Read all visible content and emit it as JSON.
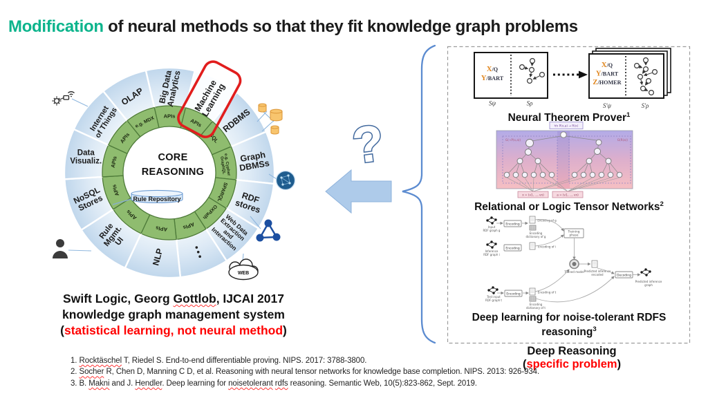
{
  "title": {
    "highlight": "Modification",
    "rest": " of neural methods so that they fit knowledge graph problems"
  },
  "colors": {
    "accent_teal": "#0cb48c",
    "alert_red": "#ff0000",
    "highlight_red": "#e11d1d",
    "wheel_blue": "#c0d7ec",
    "ring_green": "#8fbc6f",
    "arrow_blue": "#aecbea",
    "brace_blue": "#5b8bd0",
    "db_orange": "#f8c56e",
    "rdf_blue": "#1c4fa1"
  },
  "middle": {
    "question_mark": "?"
  },
  "wheel": {
    "center_line1": "CORE",
    "center_line2": "REASONING",
    "rule_repository_label": "Rule Repository",
    "web_label": "WEB",
    "segments": [
      {
        "label": "Big Data\nAnalytics",
        "inner": "APIs",
        "phi": 0,
        "rot": -78
      },
      {
        "label": "Machine\nLearning",
        "inner": "APIs",
        "phi": 28,
        "rot": -60,
        "highlighted": true
      },
      {
        "label": "RDBMS",
        "inner": "SQL",
        "phi": 52,
        "rot": -38
      },
      {
        "label": "Graph\nDBMSs",
        "inner": "e.g. Cypher\nGraphQL",
        "phi": 82,
        "rot": -10
      },
      {
        "label": "RDF\nstores",
        "inner": "SPARQL",
        "phi": 110,
        "rot": 18
      },
      {
        "label": "Web Data\nExtraction\nand\nInteraction",
        "inner": "OXPath",
        "phi": 134,
        "rot": 42
      },
      {
        "label": "⋮",
        "inner": "APIs",
        "phi": 160,
        "rot": 0
      },
      {
        "label": "NLP",
        "inner": "APIs",
        "phi": 188,
        "rot": -75
      },
      {
        "label": "Rule\nMgmt.\nUI",
        "inner": "APIs",
        "phi": 222,
        "rot": -52
      },
      {
        "label": "NoSQL\nStores",
        "inner": "APIs",
        "phi": 252,
        "rot": -26
      },
      {
        "label": "Data\nVisualiz.",
        "inner": "APIs",
        "phi": 281,
        "rot": 0
      },
      {
        "label": "Internet\nof Things",
        "inner": "APIs",
        "phi": 308,
        "rot": -58
      },
      {
        "label": "OLAP",
        "inner": "e.g. MDX",
        "phi": 334,
        "rot": -34
      }
    ]
  },
  "caption": {
    "line1_pre": "Swift Logic, Georg ",
    "line1_name": "Gottlob",
    "line1_post": ", IJCAI 2017",
    "line2": "knowledge graph management system",
    "line3_open": "(",
    "line3_text": "statistical learning, not neural method",
    "line3_close": ")"
  },
  "panels": {
    "ntp": {
      "caption": "Neural Theorem Prover",
      "sup": "1",
      "left_box": {
        "vars": [
          [
            "X",
            "/Q"
          ],
          [
            "Y",
            "/BART"
          ]
        ],
        "sub1": "Sψ",
        "sub2": "Sρ"
      },
      "right_box": {
        "vars": [
          [
            "X",
            "/Q"
          ],
          [
            "Y",
            "/BART"
          ],
          [
            "Z",
            "/HOMER"
          ]
        ],
        "sub1": "S'ψ",
        "sub2": "S'ρ"
      }
    },
    "ltn": {
      "caption": "Relational or Logic Tensor Networks",
      "sup": "2",
      "formula": "∀x P(x,a) → R(x)",
      "left_tag": "G(¬P(x,a))",
      "right_tag": "G(R(a))",
      "vec1": "x = (v1, ..., vn)",
      "vec2": "a = (v1, ..., vn)"
    },
    "rdfs": {
      "caption_line1": "Deep learning for noise-tolerant RDFS",
      "caption_line2": "reasoning",
      "sup": "3",
      "labels": {
        "input_g": "Input\nRDF graph g",
        "encoding": "Encoding",
        "enc_g": "Encoding of g",
        "dict_g": "Encoding\ndictionary of g",
        "inference_i": "Inference\nRDF graph i",
        "enc_i": "Encoding of i",
        "training": "Training\nphase",
        "trained": "Trained model",
        "pred_enc": "Predicted inference\nencoded",
        "decoding": "Decoding",
        "pred_graph": "Predicted inference\ngraph",
        "test_t": "Test input\nRDF graph t",
        "enc_t": "Encoding of t",
        "dict_t": "Encoding\ndictionary of t"
      }
    },
    "deep_reasoning": {
      "line1": "Deep Reasoning",
      "open": "(",
      "text": "specific problem",
      "close": ")"
    }
  },
  "references": [
    {
      "parts": [
        {
          "t": "1. "
        },
        {
          "t": "Rocktäschel",
          "sq": true
        },
        {
          "t": " T, Riedel S. End-to-end differentiable proving. NIPS. 2017: 3788-3800."
        }
      ]
    },
    {
      "parts": [
        {
          "t": "2. "
        },
        {
          "t": "Socher",
          "sq": true
        },
        {
          "t": " R, Chen D, Manning C D, et al. Reasoning with neural tensor networks for knowledge base completion. NIPS. 2013: 926-934."
        }
      ]
    },
    {
      "parts": [
        {
          "t": "3. B. "
        },
        {
          "t": "Makni",
          "sq": true
        },
        {
          "t": " and J. "
        },
        {
          "t": "Hendler",
          "sq": true
        },
        {
          "t": ". Deep learning for "
        },
        {
          "t": "noisetolerant",
          "sq": true
        },
        {
          "t": " "
        },
        {
          "t": "rdfs",
          "sq": true
        },
        {
          "t": " reasoning. Semantic Web, 10(5):823-862, Sept. 2019."
        }
      ]
    }
  ]
}
